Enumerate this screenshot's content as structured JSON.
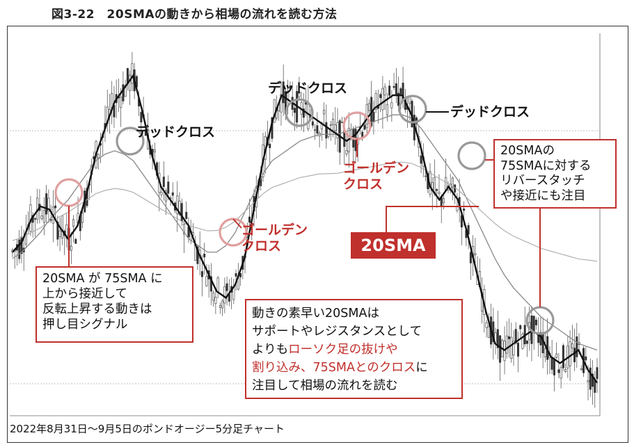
{
  "figure_title": "図3-22　20SMAの動きから相場の流れを読む方法",
  "caption": "2022年8月31日〜9月5日のポンドオージー5分足チャート",
  "colors": {
    "accent_red": "#c0302c",
    "sma20": "#111111",
    "sma75": "#888888",
    "candle": "#333333"
  },
  "annotations": {
    "dead_cross_1": "デッドクロス",
    "dead_cross_2": "デッドクロス",
    "dead_cross_3": "デッドクロス",
    "golden_cross_1_line1": "ゴールデン",
    "golden_cross_1_line2": "クロス",
    "golden_cross_2_line1": "ゴールデン",
    "golden_cross_2_line2": "クロス"
  },
  "sma_badge": "20SMA",
  "note_left": {
    "line1": "20SMA が 75SMA に",
    "line2": "上から接近して",
    "line3": "反転上昇する動きは",
    "line4": "押し目シグナル"
  },
  "note_right": {
    "line1": "20SMAの",
    "line2": "75SMAに対する",
    "line3": "リバースタッチ",
    "line4": "や接近にも注目"
  },
  "note_center": {
    "line1": "動きの素早い20SMAは",
    "line2": "サポートやレジスタンスとして",
    "line3_pre": "よりも",
    "line3_red": "ローソク足の抜けや",
    "line4_red": "割り込み、75SMAとのクロス",
    "line4_post": "に",
    "line5": "注目して相場の流れを読む"
  },
  "chart_data": {
    "type": "line",
    "description_series": [
      {
        "name": "20SMA",
        "values": [
          0.42,
          0.45,
          0.52,
          0.56,
          0.55,
          0.5,
          0.46,
          0.5,
          0.6,
          0.72,
          0.8,
          0.88,
          0.92,
          0.96,
          0.85,
          0.72,
          0.62,
          0.58,
          0.54,
          0.5,
          0.42,
          0.36,
          0.3,
          0.28,
          0.32,
          0.4,
          0.55,
          0.7,
          0.82,
          0.9,
          0.88,
          0.86,
          0.84,
          0.82,
          0.8,
          0.78,
          0.76,
          0.78,
          0.82,
          0.86,
          0.88,
          0.9,
          0.9,
          0.84,
          0.74,
          0.62,
          0.58,
          0.62,
          0.58,
          0.48,
          0.36,
          0.24,
          0.14,
          0.12,
          0.14,
          0.16,
          0.18,
          0.16,
          0.1,
          0.08,
          0.1,
          0.12,
          0.06,
          0.02
        ]
      },
      {
        "name": "75SMA",
        "values": [
          0.4,
          0.42,
          0.45,
          0.48,
          0.52,
          0.55,
          0.58,
          0.62,
          0.66,
          0.7,
          0.72,
          0.73,
          0.72,
          0.7,
          0.66,
          0.62,
          0.58,
          0.54,
          0.5,
          0.46,
          0.44,
          0.42,
          0.42,
          0.44,
          0.48,
          0.54,
          0.6,
          0.66,
          0.7,
          0.72,
          0.74,
          0.76,
          0.77,
          0.78,
          0.78,
          0.78,
          0.79,
          0.8,
          0.81,
          0.82,
          0.83,
          0.84,
          0.84,
          0.83,
          0.8,
          0.76,
          0.72,
          0.68,
          0.64,
          0.58,
          0.52,
          0.46,
          0.4,
          0.35,
          0.31,
          0.28,
          0.25,
          0.22,
          0.2,
          0.18,
          0.16,
          0.14,
          0.13,
          0.12
        ]
      }
    ]
  }
}
